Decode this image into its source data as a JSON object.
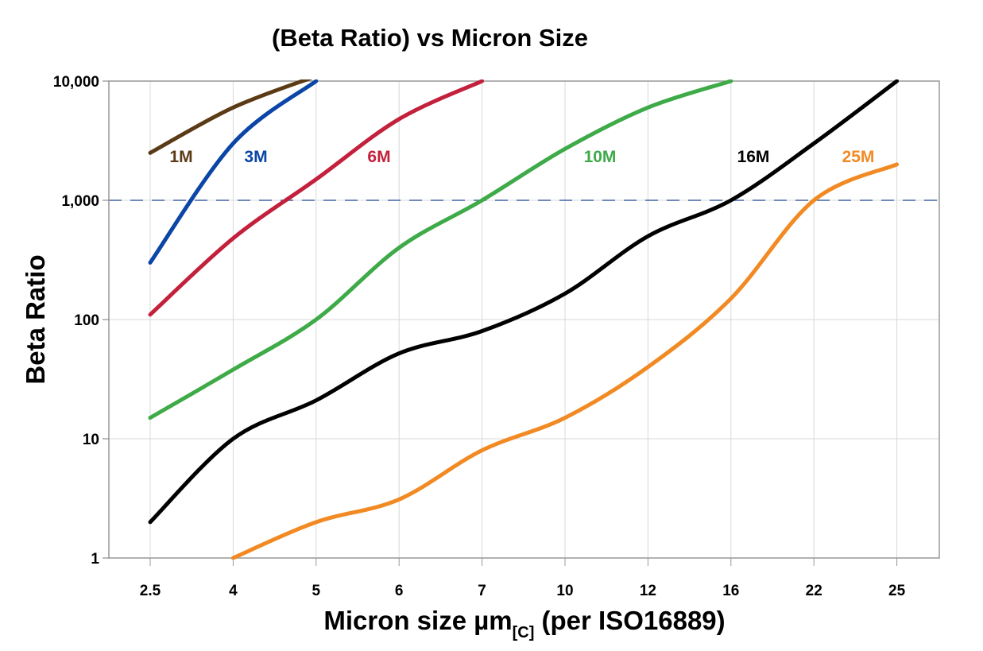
{
  "chart_data": {
    "type": "line",
    "title": "(Beta Ratio) vs Micron Size",
    "xlabel": {
      "main": "Micron size µm",
      "subscript": "[C]",
      "suffix": " (per ISO16889)"
    },
    "ylabel": "Beta Ratio",
    "categories": [
      "2.5",
      "4",
      "5",
      "6",
      "7",
      "10",
      "12",
      "16",
      "22",
      "25"
    ],
    "y_scale": "log",
    "ylim": [
      1,
      10000
    ],
    "y_ticks": [
      1,
      10,
      100,
      1000,
      10000
    ],
    "y_tick_labels": [
      "1",
      "10",
      "100",
      "1,000",
      "10,000"
    ],
    "grid": true,
    "reference_line": {
      "value": 1000,
      "style": "dashed",
      "color": "#3f62a3"
    },
    "series": [
      {
        "name": "1M",
        "color": "#5b3a16",
        "values": [
          2500,
          6000,
          11000,
          null,
          null,
          null,
          null,
          null,
          null,
          null
        ]
      },
      {
        "name": "3M",
        "color": "#0b45a6",
        "values": [
          300,
          3000,
          10000,
          null,
          null,
          null,
          null,
          null,
          null,
          null
        ]
      },
      {
        "name": "6M",
        "color": "#c3203b",
        "values": [
          110,
          480,
          1500,
          4800,
          10000,
          null,
          null,
          null,
          null,
          null
        ]
      },
      {
        "name": "10M",
        "color": "#3eaa48",
        "values": [
          15,
          38,
          100,
          400,
          1000,
          2700,
          6000,
          10000,
          null,
          null
        ]
      },
      {
        "name": "16M",
        "color": "#000000",
        "values": [
          2,
          10,
          21,
          52,
          80,
          165,
          500,
          1000,
          3000,
          10000
        ]
      },
      {
        "name": "25M",
        "color": "#f28a24",
        "values": [
          null,
          1,
          2,
          3.1,
          8,
          15,
          40,
          150,
          1000,
          2000
        ]
      }
    ]
  }
}
